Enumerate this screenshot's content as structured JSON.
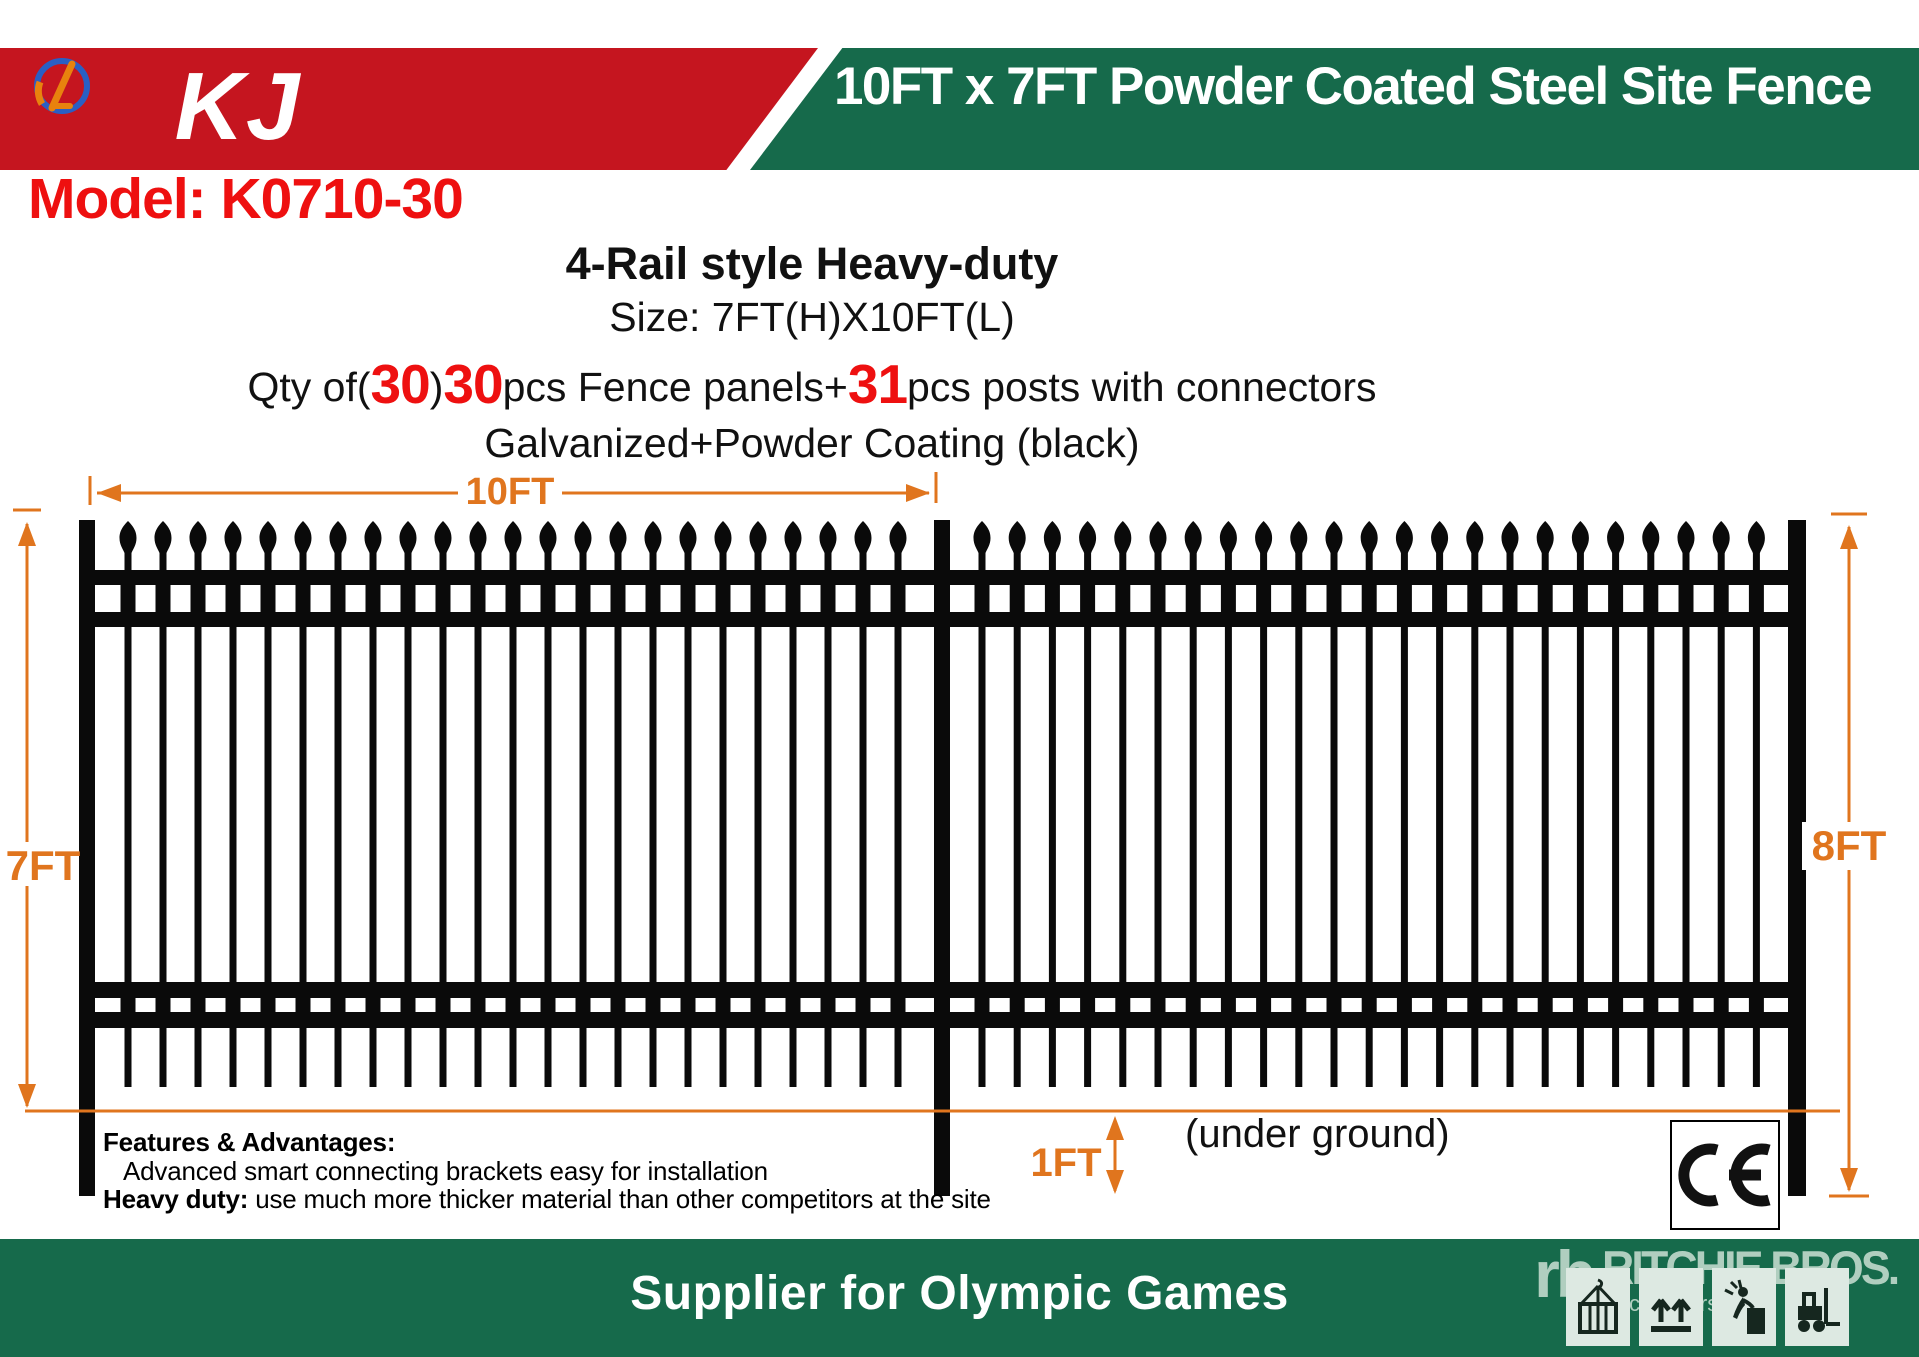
{
  "header": {
    "logo_text": "KJ",
    "logo_emblem_icon": "globe-swoosh-icon",
    "title": "10FT x 7FT Powder Coated Steel Site Fence"
  },
  "model_line": "Model: K0710-30",
  "specs": {
    "style_line": "4-Rail style Heavy-duty",
    "size_line": "Size: 7FT(H)X10FT(L)",
    "qty": {
      "prefix": "Qty of(",
      "num1": "30",
      "close_paren": ")",
      "num2": "30",
      "mid_text": "pcs Fence panels+",
      "num3": "31",
      "suffix": "pcs posts with connectors"
    },
    "coating_line": "Galvanized+Powder Coating (black)"
  },
  "dimensions": {
    "width_label": "10FT",
    "height_above_ground_label": "7FT",
    "height_total_label": "8FT",
    "underground_depth_label": "1FT",
    "underground_note": "(under ground)"
  },
  "features": {
    "heading": "Features & Advantages:",
    "line1": "Advanced smart connecting brackets easy for installation",
    "line2_bold": "Heavy duty:",
    "line2_rest": " use much more thicker material than other competitors at the site"
  },
  "certification": {
    "ce_mark": "CE"
  },
  "footer": {
    "banner_text": "Supplier for  Olympic Games"
  },
  "watermark": {
    "mark": "rb",
    "name": "RITCHIE BROS.",
    "sub": "Auctioneers"
  },
  "packaging_icons": [
    "crate-hoist-icon",
    "this-way-up-icon",
    "no-step-icon",
    "forklift-icon"
  ],
  "colors": {
    "header_green": "#166a4b",
    "banner_red": "#c5151f",
    "accent_red": "#ee1010",
    "dimension_orange": "#e0751e",
    "fence_black": "#0a0a0a"
  }
}
